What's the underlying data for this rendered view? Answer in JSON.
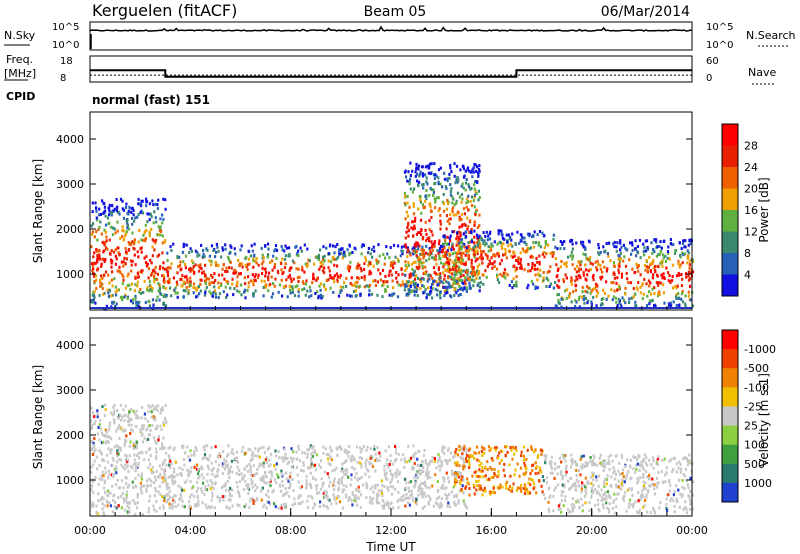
{
  "header": {
    "station": "Kerguelen (fitACF)",
    "beam": "Beam 05",
    "date": "06/Mar/2014"
  },
  "nsky_panel": {
    "left_label": "N.Sky",
    "right_label": "N.Search",
    "left_ticks": [
      "10^5",
      "10^0"
    ],
    "right_ticks": [
      "10^5",
      "10^0"
    ]
  },
  "freq_panel": {
    "left_label": "Freq.",
    "left_unit": "[MHz]",
    "left_ticks": [
      "18",
      "8"
    ],
    "right_label": "Nave",
    "right_ticks": [
      "60",
      "0"
    ],
    "freq_steps": [
      {
        "start_hour": 0.0,
        "end_hour": 3.0,
        "value": 12.5
      },
      {
        "start_hour": 3.0,
        "end_hour": 17.0,
        "value": 10.0
      },
      {
        "start_hour": 17.0,
        "end_hour": 24.0,
        "value": 12.5
      }
    ],
    "nave_level": 16
  },
  "cpid": {
    "label": "CPID",
    "value": "normal (fast) 151"
  },
  "chart_data": [
    {
      "type": "heatmap",
      "name": "power",
      "xlabel": "",
      "ylabel": "Slant Range [km]",
      "xlim": [
        0,
        24
      ],
      "ylim": [
        200,
        4600
      ],
      "y_ticks": [
        1000,
        2000,
        3000,
        4000
      ],
      "colorbar": {
        "label": "Power [dB]",
        "tick_labels": [
          "4",
          "8",
          "12",
          "16",
          "20",
          "24",
          "28"
        ],
        "colors": [
          "#1010e0",
          "#2860b8",
          "#3a8a70",
          "#60b040",
          "#f0a000",
          "#f06000",
          "#e82000",
          "#ff0000"
        ]
      },
      "regions": [
        {
          "start_hour": 0.0,
          "end_hour": 3.0,
          "range_min": 250,
          "range_max": 2700
        },
        {
          "start_hour": 3.0,
          "end_hour": 15.0,
          "range_min": 500,
          "range_max": 1700
        },
        {
          "start_hour": 12.5,
          "end_hour": 15.5,
          "range_min": 600,
          "range_max": 3500
        },
        {
          "start_hour": 14.0,
          "end_hour": 18.5,
          "range_min": 700,
          "range_max": 2000
        },
        {
          "start_hour": 18.5,
          "end_hour": 24.0,
          "range_min": 300,
          "range_max": 1800
        }
      ]
    },
    {
      "type": "heatmap",
      "name": "velocity",
      "xlabel": "Time UT",
      "ylabel": "Slant Range [km]",
      "xlim": [
        0,
        24
      ],
      "ylim": [
        200,
        4600
      ],
      "y_ticks": [
        1000,
        2000,
        3000,
        4000
      ],
      "x_tick_labels": [
        "00:00",
        "04:00",
        "08:00",
        "12:00",
        "16:00",
        "20:00",
        "00:00"
      ],
      "colorbar": {
        "label": "Velocity [m s-1]",
        "tick_labels": [
          "1000",
          "500",
          "100",
          "25",
          "-25",
          "-100",
          "-500",
          "-1000"
        ],
        "colors": [
          "#2040d0",
          "#2a7a70",
          "#40a040",
          "#8ad040",
          "#c8c8c8",
          "#f0c000",
          "#f08000",
          "#f04000",
          "#ff0000"
        ]
      },
      "regions": [
        {
          "start_hour": 0.0,
          "end_hour": 3.0,
          "range_min": 250,
          "range_max": 2700
        },
        {
          "start_hour": 3.0,
          "end_hour": 15.0,
          "range_min": 400,
          "range_max": 1800
        },
        {
          "start_hour": 14.5,
          "end_hour": 18.0,
          "range_min": 700,
          "range_max": 1800
        },
        {
          "start_hour": 18.0,
          "end_hour": 24.0,
          "range_min": 300,
          "range_max": 1600
        }
      ]
    }
  ]
}
